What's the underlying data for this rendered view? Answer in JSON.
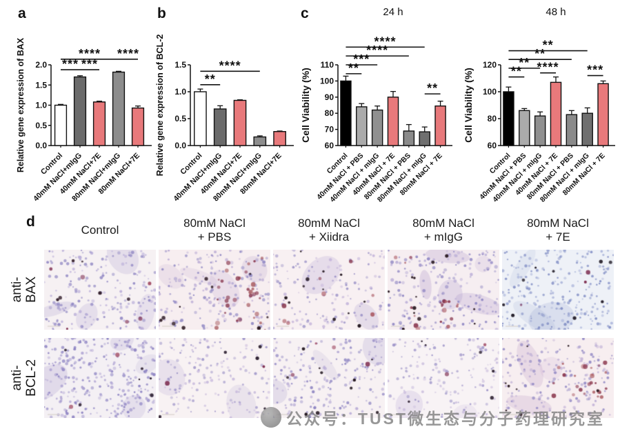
{
  "panels": {
    "a": {
      "label": "a",
      "chart_data": {
        "type": "bar",
        "title": "",
        "ylabel": "Relative gene expression of BAX",
        "categories": [
          "Control",
          "40mM NaCl+mIgG",
          "40mM NaCl+7E",
          "80mM NaCl+mIgG",
          "80mM NaCl+7E"
        ],
        "values": [
          1.0,
          1.7,
          1.08,
          1.82,
          0.93
        ],
        "errors": [
          0.02,
          0.03,
          0.02,
          0.02,
          0.05
        ],
        "bar_colors": [
          "#ffffff",
          "#6b6b6b",
          "#e8797b",
          "#8d8d8d",
          "#e8797b"
        ],
        "ylim": [
          0,
          2.0
        ],
        "yticks": [
          0.0,
          0.5,
          1.0,
          1.5,
          2.0
        ],
        "ytick_labels": [
          "0.0",
          "0.5",
          "1.0",
          "1.5",
          "2.0"
        ],
        "significance": [
          {
            "from": 0,
            "to": 1,
            "label": "***",
            "y": 1.88
          },
          {
            "from": 1,
            "to": 2,
            "label": "***",
            "y": 1.88
          },
          {
            "from": 0,
            "to": 3,
            "label": "****",
            "y": 2.14
          },
          {
            "from": 3,
            "to": 4,
            "label": "****",
            "y": 2.14
          }
        ]
      }
    },
    "b": {
      "label": "b",
      "chart_data": {
        "type": "bar",
        "title": "",
        "ylabel": "Relative gene expression of BCL-2",
        "categories": [
          "Control",
          "40mM NaCl+mIgG",
          "40mM NaCl+7E",
          "80mM NaCl+mIgG",
          "80mM NaCl+7E"
        ],
        "values": [
          1.0,
          0.68,
          0.84,
          0.16,
          0.26
        ],
        "errors": [
          0.05,
          0.06,
          0.01,
          0.02,
          0.01
        ],
        "bar_colors": [
          "#ffffff",
          "#6b6b6b",
          "#e8797b",
          "#8d8d8d",
          "#e8797b"
        ],
        "ylim": [
          0,
          1.5
        ],
        "yticks": [
          0.0,
          0.5,
          1.0,
          1.5
        ],
        "ytick_labels": [
          "0.0",
          "0.5",
          "1.0",
          "1.5"
        ],
        "significance": [
          {
            "from": 0,
            "to": 1,
            "label": "**",
            "y": 1.13
          },
          {
            "from": 0,
            "to": 3,
            "label": "****",
            "y": 1.38
          }
        ]
      }
    },
    "c": {
      "label": "c",
      "charts": [
        {
          "type": "bar",
          "title": "24 h",
          "ylabel": "Cell Viability (%)",
          "categories": [
            "Control",
            "40mM NaCl + PBS",
            "40mM NaCl + mIgG",
            "40mM NaCl + 7E",
            "80mM NaCl + PBS",
            "80mM NaCl + mIgG",
            "80mM NaCl + 7E"
          ],
          "values": [
            100,
            84,
            82,
            90,
            69,
            68.5,
            84.5
          ],
          "errors": [
            3,
            2,
            2.5,
            3.5,
            4,
            3,
            3
          ],
          "bar_colors": [
            "#000000",
            "#ababab",
            "#909090",
            "#e8797b",
            "#8a8a8a",
            "#6f6f6f",
            "#e8797b"
          ],
          "ylim": [
            60,
            110
          ],
          "yticks": [
            60,
            70,
            80,
            90,
            100,
            110
          ],
          "ytick_labels": [
            "60",
            "70",
            "80",
            "90",
            "100",
            "110"
          ],
          "significance": [
            {
              "from": 0,
              "to": 1,
              "label": "**",
              "y": 104.5
            },
            {
              "from": 0,
              "to": 2,
              "label": "***",
              "y": 110
            },
            {
              "from": 0,
              "to": 4,
              "label": "****",
              "y": 115.5
            },
            {
              "from": 0,
              "to": 5,
              "label": "****",
              "y": 121
            },
            {
              "from": 5,
              "to": 6,
              "label": "**",
              "y": 92
            }
          ]
        },
        {
          "type": "bar",
          "title": "48 h",
          "ylabel": "Cell Viability (%)",
          "categories": [
            "Control",
            "40mM NaCl + PBS",
            "40mM NaCl + mIgG",
            "40mM NaCl + 7E",
            "80mM NaCl + PBS",
            "80mM NaCl + mIgG",
            "80mM NaCl + 7E"
          ],
          "values": [
            100,
            86,
            82,
            107,
            83,
            84,
            106
          ],
          "errors": [
            3.5,
            1.5,
            3,
            4,
            3,
            4,
            2
          ],
          "bar_colors": [
            "#000000",
            "#ababab",
            "#909090",
            "#e8797b",
            "#8a8a8a",
            "#6f6f6f",
            "#e8797b"
          ],
          "ylim": [
            60,
            120
          ],
          "yticks": [
            60,
            80,
            100,
            120
          ],
          "ytick_labels": [
            "60",
            "80",
            "100",
            "120"
          ],
          "significance": [
            {
              "from": 0,
              "to": 1,
              "label": "**",
              "y": 111
            },
            {
              "from": 0,
              "to": 2,
              "label": "**",
              "y": 117.5
            },
            {
              "from": 0,
              "to": 4,
              "label": "**",
              "y": 124
            },
            {
              "from": 0,
              "to": 5,
              "label": "**",
              "y": 130.5
            },
            {
              "from": 2,
              "to": 3,
              "label": "****",
              "y": 114
            },
            {
              "from": 5,
              "to": 6,
              "label": "***",
              "y": 112
            }
          ]
        }
      ]
    },
    "d": {
      "label": "d",
      "columns": [
        {
          "line1": "Control",
          "line2": ""
        },
        {
          "line1": "80mM NaCl",
          "line2": "+ PBS"
        },
        {
          "line1": "80mM NaCl",
          "line2": "+ Xiidra"
        },
        {
          "line1": "80mM NaCl",
          "line2": "+ mIgG"
        },
        {
          "line1": "80mM NaCl",
          "line2": "+ 7E"
        }
      ],
      "rows": [
        {
          "label_line1": "anti-",
          "label_line2": "BAX",
          "cells": [
            {
              "seed": 11,
              "bg": "#f6f1f3",
              "nuclei": {
                "count": 210,
                "c1": "#8d84c2",
                "c2": "#b7abd8",
                "rmin": 1.1,
                "rmax": 2.5
              },
              "blotches": {
                "count": 4,
                "color": "#a495cc"
              },
              "stain": {
                "count": 6,
                "c1": "#7c2b4e",
                "c2": "#a04a63",
                "cluster": false
              },
              "dark": {
                "count": 6,
                "color": "#35222e"
              }
            },
            {
              "seed": 22,
              "bg": "#f7eef0",
              "nuclei": {
                "count": 190,
                "c1": "#9189c4",
                "c2": "#bdaed6",
                "rmin": 1.1,
                "rmax": 2.6
              },
              "blotches": {
                "count": 4,
                "color": "#b79ecb"
              },
              "stain": {
                "count": 38,
                "c1": "#8a3a50",
                "c2": "#b06a6e",
                "cluster": true
              },
              "dark": {
                "count": 10,
                "color": "#301d26"
              }
            },
            {
              "seed": 33,
              "bg": "#f8f0f2",
              "nuclei": {
                "count": 150,
                "c1": "#988fc6",
                "c2": "#c4b4da",
                "rmin": 1.0,
                "rmax": 2.4
              },
              "blotches": {
                "count": 2,
                "color": "#ab9cce"
              },
              "stain": {
                "count": 8,
                "c1": "#8a3a50",
                "c2": "#ad5f68",
                "cluster": false
              },
              "dark": {
                "count": 12,
                "color": "#241821"
              }
            },
            {
              "seed": 44,
              "bg": "#f6eef1",
              "nuclei": {
                "count": 190,
                "c1": "#8d84c2",
                "c2": "#b9add7",
                "rmin": 1.1,
                "rmax": 2.6
              },
              "blotches": {
                "count": 5,
                "color": "#9a7fc0"
              },
              "stain": {
                "count": 42,
                "c1": "#87344c",
                "c2": "#ad5f68",
                "cluster": true
              },
              "dark": {
                "count": 12,
                "color": "#2a1a22"
              }
            },
            {
              "seed": 55,
              "bg": "#eef1f7",
              "nuclei": {
                "count": 235,
                "c1": "#7f8cc4",
                "c2": "#aab4da",
                "rmin": 1.0,
                "rmax": 2.3
              },
              "blotches": {
                "count": 3,
                "color": "#93a0cf"
              },
              "stain": {
                "count": 3,
                "c1": "#7c2b4e",
                "c2": "#a04a63",
                "cluster": false
              },
              "dark": {
                "count": 9,
                "color": "#26202c"
              }
            }
          ]
        },
        {
          "label_line1": "anti-",
          "label_line2": "BCL-2",
          "cells": [
            {
              "seed": 66,
              "bg": "#f4f0f4",
              "nuclei": {
                "count": 290,
                "c1": "#877dc0",
                "c2": "#b1a6d4",
                "rmin": 1.1,
                "rmax": 2.5
              },
              "blotches": {
                "count": 4,
                "color": "#a495cc"
              },
              "stain": {
                "count": 2,
                "c1": "#7c2b4e",
                "c2": "#a04a63",
                "cluster": false
              },
              "dark": {
                "count": 6,
                "color": "#2c2030"
              }
            },
            {
              "seed": 77,
              "bg": "#f8f2f3",
              "nuclei": {
                "count": 170,
                "c1": "#9c93c8",
                "c2": "#c6b8dc",
                "rmin": 1.0,
                "rmax": 2.3
              },
              "blotches": {
                "count": 2,
                "color": "#b3a4d2"
              },
              "stain": {
                "count": 2,
                "c1": "#7c2b4e",
                "c2": "#a04a63",
                "cluster": false
              },
              "dark": {
                "count": 5,
                "color": "#2c2030"
              }
            },
            {
              "seed": 88,
              "bg": "#f7f1f3",
              "nuclei": {
                "count": 205,
                "c1": "#8d84c2",
                "c2": "#b9add7",
                "rmin": 1.0,
                "rmax": 2.4
              },
              "blotches": {
                "count": 3,
                "color": "#a495cc"
              },
              "stain": {
                "count": 4,
                "c1": "#7c2b4e",
                "c2": "#a04a63",
                "cluster": false
              },
              "dark": {
                "count": 10,
                "color": "#241821"
              }
            },
            {
              "seed": 99,
              "bg": "#f8f3f5",
              "nuclei": {
                "count": 160,
                "c1": "#9c93c8",
                "c2": "#c9bcdd",
                "rmin": 1.0,
                "rmax": 2.3
              },
              "blotches": {
                "count": 2,
                "color": "#b3a4d2"
              },
              "stain": {
                "count": 2,
                "c1": "#7c2b4e",
                "c2": "#a04a63",
                "cluster": false
              },
              "dark": {
                "count": 6,
                "color": "#2c2030"
              }
            },
            {
              "seed": 111,
              "bg": "#f7eef0",
              "nuclei": {
                "count": 205,
                "c1": "#9188c4",
                "c2": "#c0b0d6",
                "rmin": 1.0,
                "rmax": 2.4
              },
              "blotches": {
                "count": 3,
                "color": "#b391c0"
              },
              "stain": {
                "count": 30,
                "c1": "#8d3b51",
                "c2": "#b26a70",
                "cluster": true
              },
              "dark": {
                "count": 8,
                "color": "#2a1a22"
              }
            }
          ]
        }
      ],
      "watermark": {
        "text": "公众号：TUST微生态与分子药理研究室"
      }
    }
  }
}
